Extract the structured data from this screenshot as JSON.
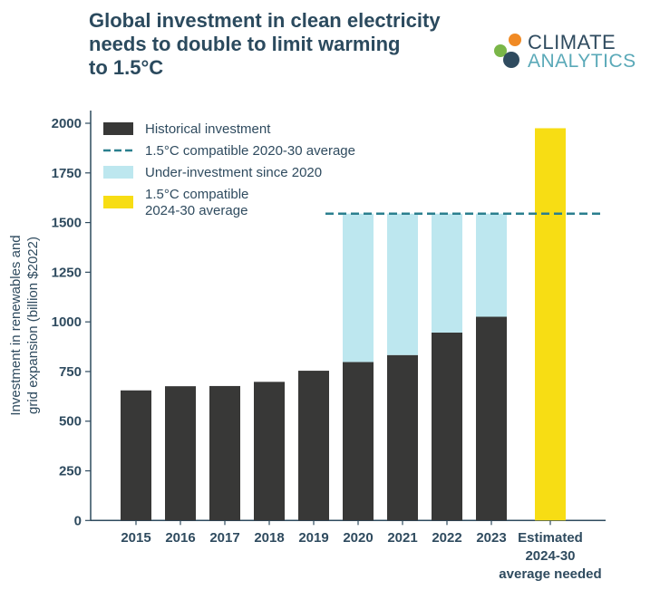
{
  "title": [
    "Global investment in clean electricity",
    "needs to double to limit warming",
    "to 1.5°C"
  ],
  "logo": {
    "line1": "CLIMATE",
    "line2": "ANALYTICS"
  },
  "colors": {
    "historical": "#383837",
    "under": "#bde7ef",
    "dashed": "#2a7f8e",
    "yellow": "#f7dd14",
    "text": "#2f4b5f"
  },
  "chart_data": {
    "type": "bar",
    "title": "Global investment in clean electricity needs to double to limit warming to 1.5°C",
    "ylabel": [
      "Investment in renewables and",
      "grid expansion (billion $2022)"
    ],
    "ylim": [
      0,
      2000
    ],
    "yticks": [
      0,
      250,
      500,
      750,
      1000,
      1250,
      1500,
      1750,
      2000
    ],
    "categories": [
      "2015",
      "2016",
      "2017",
      "2018",
      "2019",
      "2020",
      "2021",
      "2022",
      "2023",
      "Estimated 2024-30 average needed"
    ],
    "category_label_lines": [
      [
        "2015"
      ],
      [
        "2016"
      ],
      [
        "2017"
      ],
      [
        "2018"
      ],
      [
        "2019"
      ],
      [
        "2020"
      ],
      [
        "2021"
      ],
      [
        "2022"
      ],
      [
        "2023"
      ],
      [
        "Estimated",
        "2024-30",
        "average needed"
      ]
    ],
    "series": [
      {
        "name": "Historical investment",
        "values": [
          655,
          676,
          677,
          698,
          754,
          798,
          833,
          946,
          1026,
          null
        ]
      },
      {
        "name": "Under-investment since 2020",
        "values": [
          null,
          null,
          null,
          null,
          null,
          747,
          712,
          599,
          519,
          null
        ]
      },
      {
        "name": "1.5°C compatible 2024-30 average",
        "values": [
          null,
          null,
          null,
          null,
          null,
          null,
          null,
          null,
          null,
          1975
        ]
      }
    ],
    "reference_line": {
      "name": "1.5°C compatible 2020-30 average",
      "value": 1545
    },
    "legend": {
      "placement": "top-left",
      "entries": [
        {
          "label": "Historical investment",
          "kind": "box",
          "color": "#383837"
        },
        {
          "label": "1.5°C compatible 2020-30 average",
          "kind": "dash",
          "color": "#2a7f8e"
        },
        {
          "label": "Under-investment since 2020",
          "kind": "box",
          "color": "#bde7ef"
        },
        {
          "label": "1.5°C compatible\n2024-30 average",
          "kind": "box",
          "color": "#f7dd14"
        }
      ]
    },
    "grid": false
  }
}
